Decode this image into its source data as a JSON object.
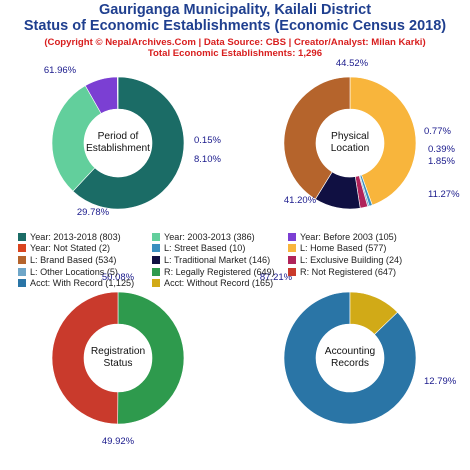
{
  "header": {
    "title_line1": "Gauriganga Municipality, Kailali District",
    "title_line2": "Status of Economic Establishments (Economic Census 2018)",
    "subtitle_line1": "(Copyright © NepalArchives.Com | Data Source: CBS | Creator/Analyst: Milan Karki)",
    "subtitle_line2": "Total Economic Establishments: 1,296"
  },
  "chart_data": [
    {
      "type": "pie",
      "title": "Period of Establishment",
      "center_label": [
        "Period of",
        "Establishment"
      ],
      "slices": [
        {
          "label": "Year: 2013-2018",
          "count": 803,
          "value": 61.96,
          "pct_label": "61.96%",
          "color": "#1b6c66"
        },
        {
          "label": "Year: 2003-2013",
          "count": 386,
          "value": 29.78,
          "pct_label": "29.78%",
          "color": "#62cf9c"
        },
        {
          "label": "Year: Before 2003",
          "count": 105,
          "value": 8.1,
          "pct_label": "8.10%",
          "color": "#7b3fd3"
        },
        {
          "label": "Year: Not Stated",
          "count": 2,
          "value": 0.15,
          "pct_label": "0.15%",
          "color": "#d9441f"
        }
      ]
    },
    {
      "type": "pie",
      "title": "Physical Location",
      "center_label": [
        "Physical",
        "Location"
      ],
      "slices": [
        {
          "label": "L: Home Based",
          "count": 577,
          "value": 44.52,
          "pct_label": "44.52%",
          "color": "#f8b53c"
        },
        {
          "label": "L: Street Based",
          "count": 10,
          "value": 0.77,
          "pct_label": "0.77%",
          "color": "#3a8fbf"
        },
        {
          "label": "L: Other Locations",
          "count": 5,
          "value": 0.39,
          "pct_label": "0.39%",
          "color": "#6fa6c8"
        },
        {
          "label": "L: Exclusive Building",
          "count": 24,
          "value": 1.85,
          "pct_label": "1.85%",
          "color": "#b0235a"
        },
        {
          "label": "L: Traditional Market",
          "count": 146,
          "value": 11.27,
          "pct_label": "11.27%",
          "color": "#101042"
        },
        {
          "label": "L: Brand Based",
          "count": 534,
          "value": 41.2,
          "pct_label": "41.20%",
          "color": "#b5642c"
        }
      ]
    },
    {
      "type": "pie",
      "title": "Registration Status",
      "center_label": [
        "Registration",
        "Status"
      ],
      "slices": [
        {
          "label": "R: Legally Registered",
          "count": 649,
          "value": 50.08,
          "pct_label": "50.08%",
          "color": "#2e9a4d"
        },
        {
          "label": "R: Not Registered",
          "count": 647,
          "value": 49.92,
          "pct_label": "49.92%",
          "color": "#c93a2c"
        }
      ]
    },
    {
      "type": "pie",
      "title": "Accounting Records",
      "center_label": [
        "Accounting",
        "Records"
      ],
      "slices": [
        {
          "label": "Acct: With Record",
          "count": 1125,
          "value": 87.21,
          "pct_label": "87.21%",
          "color": "#2a75a6"
        },
        {
          "label": "Acct: Without Record",
          "count": 165,
          "value": 12.79,
          "pct_label": "12.79%",
          "color": "#d1aa17"
        }
      ]
    }
  ],
  "legend": [
    [
      {
        "text": "Year: 2013-2018 (803)",
        "color": "#1b6c66"
      },
      {
        "text": "Year: 2003-2013 (386)",
        "color": "#62cf9c"
      },
      {
        "text": "Year: Before 2003 (105)",
        "color": "#7b3fd3"
      }
    ],
    [
      {
        "text": "Year: Not Stated (2)",
        "color": "#d9441f"
      },
      {
        "text": "L: Street Based (10)",
        "color": "#3a8fbf"
      },
      {
        "text": "L: Home Based (577)",
        "color": "#f8b53c"
      }
    ],
    [
      {
        "text": "L: Brand Based (534)",
        "color": "#b5642c"
      },
      {
        "text": "L: Traditional Market (146)",
        "color": "#101042"
      },
      {
        "text": "L: Exclusive Building (24)",
        "color": "#b0235a"
      }
    ],
    [
      {
        "text": "L: Other Locations (5)",
        "color": "#6fa6c8"
      },
      {
        "text": "R: Legally Registered (649)",
        "color": "#2e9a4d"
      },
      {
        "text": "R: Not Registered (647)",
        "color": "#c93a2c"
      }
    ],
    [
      {
        "text": "Acct: With Record (1,125)",
        "color": "#2a75a6"
      },
      {
        "text": "Acct: Without Record (165)",
        "color": "#d1aa17"
      }
    ]
  ]
}
